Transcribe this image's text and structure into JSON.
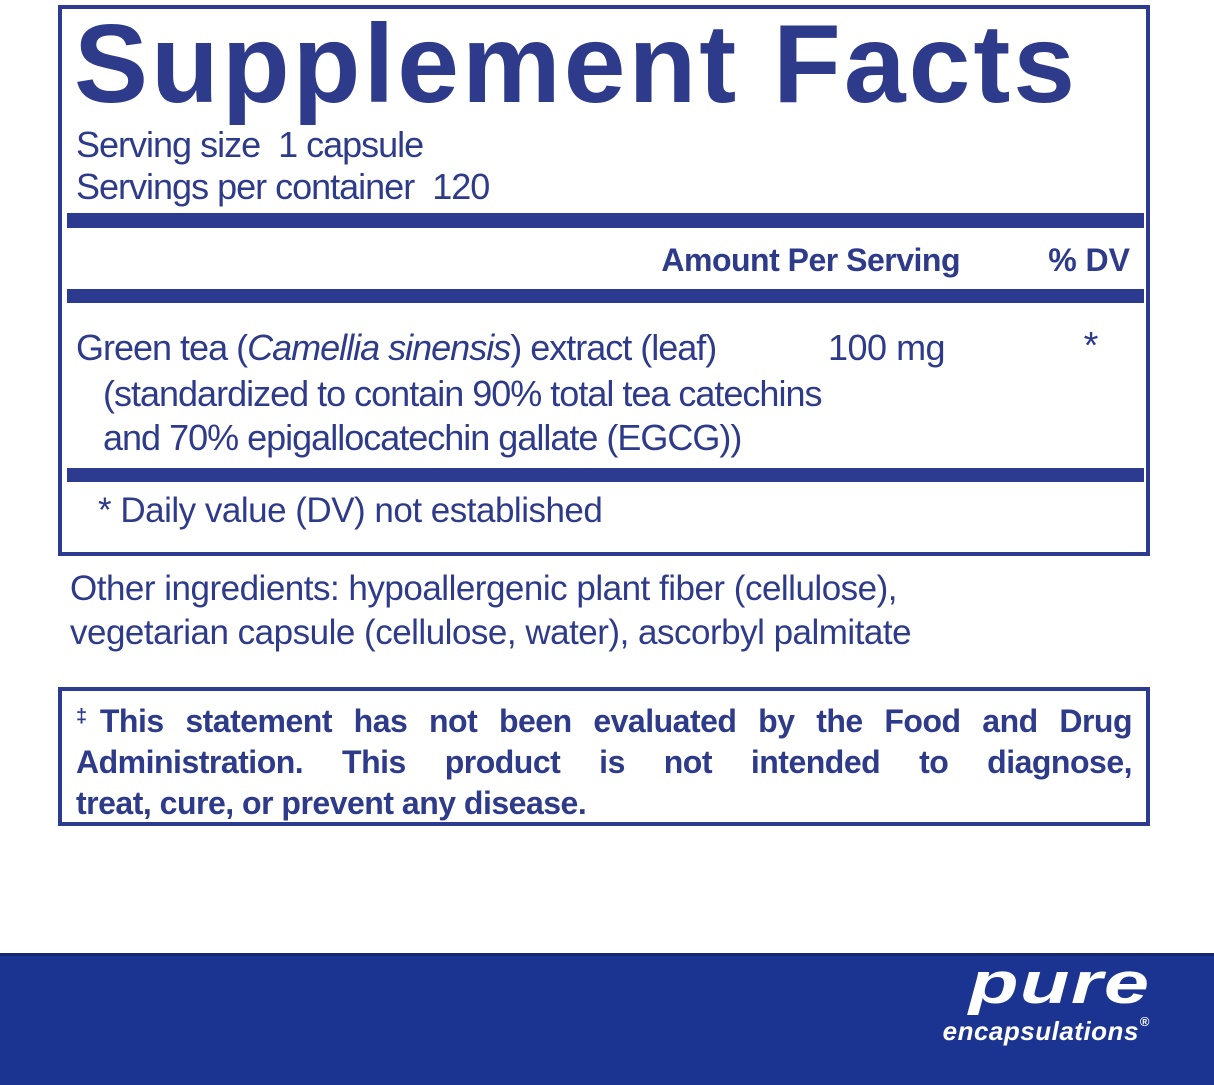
{
  "colors": {
    "navy_text": "#2e3a8a",
    "rule_navy": "#2c3a8f",
    "band_navy": "#1b3491",
    "background": "#ffffff",
    "logo_white": "#ffffff"
  },
  "supplement_facts": {
    "title": "Supplement Facts",
    "serving_size": {
      "label": "Serving size",
      "value": "1 capsule"
    },
    "servings_per_container": {
      "label": "Servings per container",
      "value": "120"
    },
    "column_headers": {
      "amount": "Amount Per Serving",
      "dv": "% DV"
    },
    "ingredients": [
      {
        "name_prefix": "Green tea (",
        "name_latin": "Camellia sinensis",
        "name_suffix": ") extract (leaf)",
        "amount": "100 mg",
        "dv": "*",
        "detail_line_1": "(standardized to contain 90% total tea catechins",
        "detail_line_2": "and 70% epigallocatechin gallate (EGCG))"
      }
    ],
    "footnote": "* Daily value (DV) not established"
  },
  "other_ingredients": {
    "line_1": "Other ingredients: hypoallergenic plant fiber (cellulose),",
    "line_2": "vegetarian capsule (cellulose, water), ascorbyl palmitate"
  },
  "fda_disclaimer": {
    "dagger": "‡",
    "line_1": "This statement has not been evaluated by the Food and Drug",
    "line_2": "Administration. This product is not intended to diagnose,",
    "line_3": "treat, cure, or prevent any disease."
  },
  "brand": {
    "name": "pure",
    "subname": "encapsulations",
    "registered_mark": "®"
  }
}
